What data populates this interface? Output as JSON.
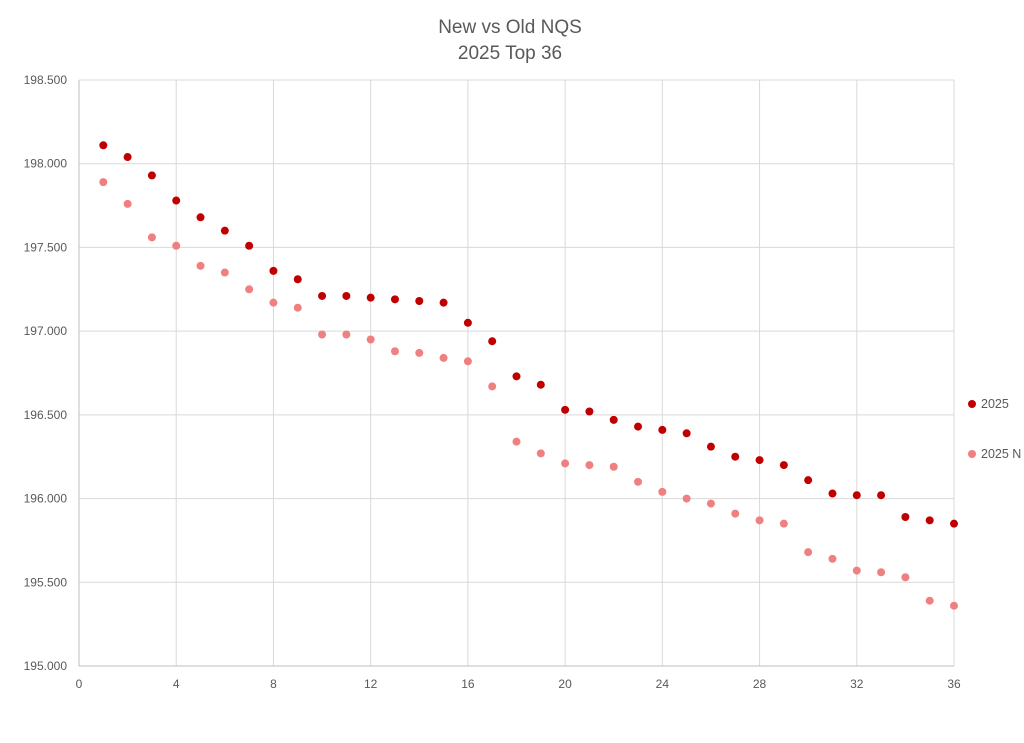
{
  "chart_data": {
    "type": "scatter",
    "title": "New vs Old NQS",
    "subtitle": "2025 Top 36",
    "xlabel": "",
    "ylabel": "",
    "xlim": [
      0,
      36
    ],
    "ylim": [
      195.0,
      198.5
    ],
    "x_ticks": [
      "0",
      "4",
      "8",
      "12",
      "16",
      "20",
      "24",
      "28",
      "32",
      "36"
    ],
    "y_ticks": [
      "195.000",
      "195.500",
      "196.000",
      "196.500",
      "197.000",
      "197.500",
      "198.000",
      "198.500"
    ],
    "grid": true,
    "legend_position": "right",
    "series": [
      {
        "name": "2025",
        "color": "#c00000",
        "points": [
          [
            1,
            198.11
          ],
          [
            2,
            198.04
          ],
          [
            3,
            197.93
          ],
          [
            4,
            197.78
          ],
          [
            5,
            197.68
          ],
          [
            6,
            197.6
          ],
          [
            7,
            197.51
          ],
          [
            8,
            197.36
          ],
          [
            9,
            197.31
          ],
          [
            10,
            197.21
          ],
          [
            11,
            197.21
          ],
          [
            12,
            197.2
          ],
          [
            13,
            197.19
          ],
          [
            14,
            197.18
          ],
          [
            15,
            197.17
          ],
          [
            16,
            197.05
          ],
          [
            17,
            196.94
          ],
          [
            18,
            196.73
          ],
          [
            19,
            196.68
          ],
          [
            20,
            196.53
          ],
          [
            21,
            196.52
          ],
          [
            22,
            196.47
          ],
          [
            23,
            196.43
          ],
          [
            24,
            196.41
          ],
          [
            25,
            196.39
          ],
          [
            26,
            196.31
          ],
          [
            27,
            196.25
          ],
          [
            28,
            196.23
          ],
          [
            29,
            196.2
          ],
          [
            30,
            196.11
          ],
          [
            31,
            196.03
          ],
          [
            32,
            196.02
          ],
          [
            33,
            196.02
          ],
          [
            34,
            195.89
          ],
          [
            35,
            195.87
          ],
          [
            36,
            195.85
          ]
        ]
      },
      {
        "name": "2025 N",
        "color": "#f08080",
        "points": [
          [
            1,
            197.89
          ],
          [
            2,
            197.76
          ],
          [
            3,
            197.56
          ],
          [
            4,
            197.51
          ],
          [
            5,
            197.39
          ],
          [
            6,
            197.35
          ],
          [
            7,
            197.25
          ],
          [
            8,
            197.17
          ],
          [
            9,
            197.14
          ],
          [
            10,
            196.98
          ],
          [
            11,
            196.98
          ],
          [
            12,
            196.95
          ],
          [
            13,
            196.88
          ],
          [
            14,
            196.87
          ],
          [
            15,
            196.84
          ],
          [
            16,
            196.82
          ],
          [
            17,
            196.67
          ],
          [
            18,
            196.34
          ],
          [
            19,
            196.27
          ],
          [
            20,
            196.21
          ],
          [
            21,
            196.2
          ],
          [
            22,
            196.19
          ],
          [
            23,
            196.1
          ],
          [
            24,
            196.04
          ],
          [
            25,
            196.0
          ],
          [
            26,
            195.97
          ],
          [
            27,
            195.91
          ],
          [
            28,
            195.87
          ],
          [
            29,
            195.85
          ],
          [
            30,
            195.68
          ],
          [
            31,
            195.64
          ],
          [
            32,
            195.57
          ],
          [
            33,
            195.56
          ],
          [
            34,
            195.53
          ],
          [
            35,
            195.39
          ],
          [
            36,
            195.36
          ]
        ]
      }
    ]
  }
}
